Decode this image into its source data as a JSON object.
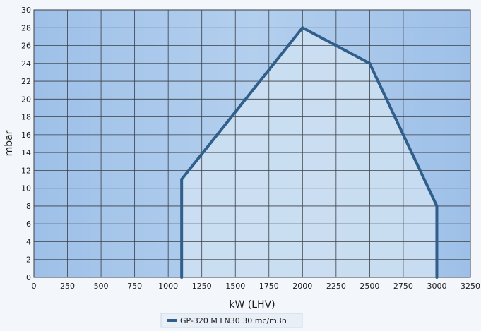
{
  "chart_data": {
    "type": "area",
    "title": "",
    "xlabel": "kW (LHV)",
    "ylabel": "mbar",
    "xlim": [
      0,
      3250
    ],
    "ylim": [
      0,
      30
    ],
    "xticks": [
      0,
      250,
      500,
      750,
      1000,
      1250,
      1500,
      1750,
      2000,
      2250,
      2500,
      2750,
      3000,
      3250
    ],
    "yticks": [
      0,
      2,
      4,
      6,
      8,
      10,
      12,
      14,
      16,
      18,
      20,
      22,
      24,
      26,
      28,
      30
    ],
    "grid": true,
    "legend_position": "bottom-center",
    "series": [
      {
        "name": "GP-320 M LN30 30 mc/m3n",
        "color": "#2f5f8a",
        "points": [
          {
            "x": 1100,
            "y": 0
          },
          {
            "x": 1100,
            "y": 11
          },
          {
            "x": 2000,
            "y": 28
          },
          {
            "x": 2500,
            "y": 24
          },
          {
            "x": 3000,
            "y": 8
          },
          {
            "x": 3000,
            "y": 0
          }
        ]
      }
    ],
    "colors": {
      "plot_background": "#a9c8ea",
      "area_fill": "#cfe0f2",
      "grid": "#3a3f46"
    }
  }
}
